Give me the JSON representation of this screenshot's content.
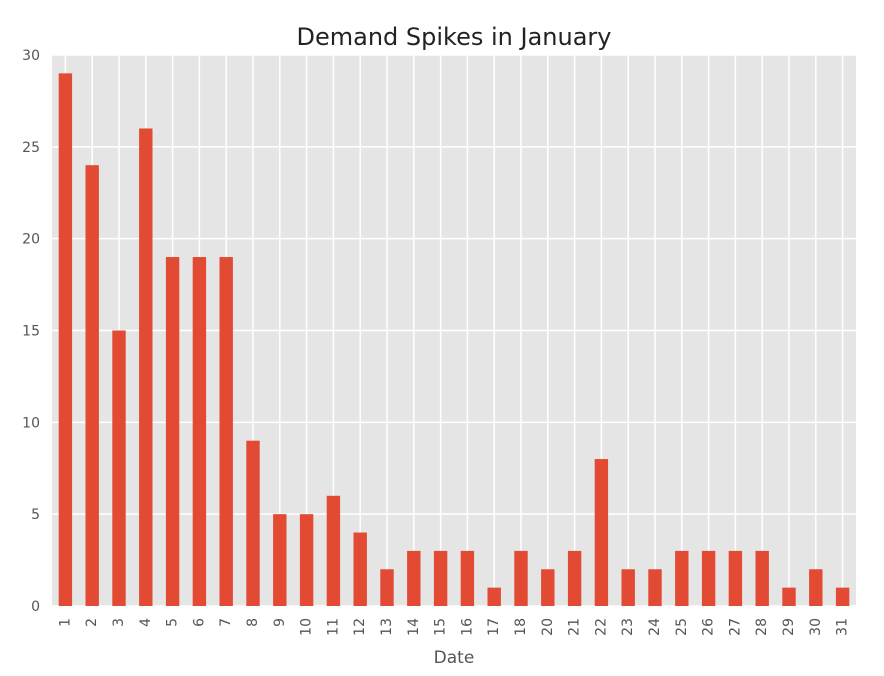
{
  "chart_data": {
    "type": "bar",
    "title": "Demand Spikes in January",
    "xlabel": "Date",
    "ylabel": "",
    "categories": [
      "1",
      "2",
      "3",
      "4",
      "5",
      "6",
      "7",
      "8",
      "9",
      "10",
      "11",
      "12",
      "13",
      "14",
      "15",
      "16",
      "17",
      "18",
      "20",
      "21",
      "22",
      "23",
      "24",
      "25",
      "26",
      "27",
      "28",
      "29",
      "30",
      "31"
    ],
    "values": [
      29,
      24,
      15,
      26,
      19,
      19,
      19,
      9,
      5,
      5,
      6,
      4,
      2,
      3,
      3,
      3,
      1,
      3,
      2,
      3,
      8,
      2,
      2,
      3,
      3,
      3,
      3,
      1,
      2,
      1
    ],
    "ylim": [
      0,
      30
    ],
    "yticks": [
      0,
      5,
      10,
      15,
      20,
      25,
      30
    ],
    "grid": true,
    "legend": "none",
    "colors": {
      "bar": "#e24a33",
      "plot_background": "#e5e5e5",
      "grid": "#ffffff"
    }
  }
}
